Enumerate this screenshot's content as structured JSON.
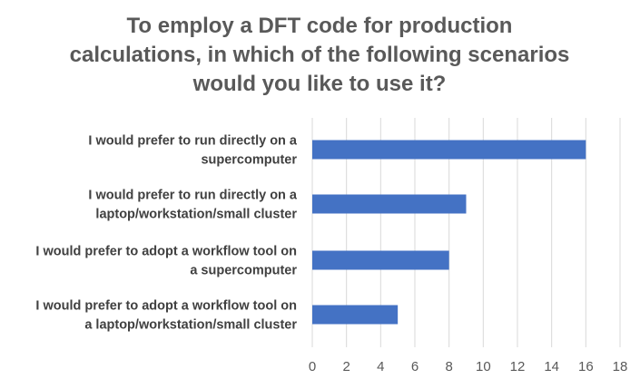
{
  "chart_data": {
    "type": "bar",
    "orientation": "horizontal",
    "title": "To employ a DFT code for production calculations, in which of the following scenarios would you like to use it?",
    "title_lines": [
      "To employ a DFT code for production",
      "calculations, in which of the following scenarios",
      "would you like to use it?"
    ],
    "categories": [
      "I would prefer to run directly on a supercomputer",
      "I would prefer to run directly on a laptop/workstation/small cluster",
      "I would prefer to adopt a workflow tool on a supercomputer",
      "I would prefer to adopt a workflow tool on a laptop/workstation/small cluster"
    ],
    "category_label_lines": [
      [
        "I would prefer to run directly on a",
        "supercomputer"
      ],
      [
        "I would prefer to run directly on a",
        "laptop/workstation/small cluster"
      ],
      [
        "I would prefer to adopt a workflow tool on",
        "a supercomputer"
      ],
      [
        "I would prefer to adopt a workflow tool on",
        "a laptop/workstation/small cluster"
      ]
    ],
    "values": [
      16,
      9,
      8,
      5
    ],
    "xlim": [
      0,
      18
    ],
    "xticks": [
      0,
      2,
      4,
      6,
      8,
      10,
      12,
      14,
      16,
      18
    ],
    "xlabel": "",
    "ylabel": "",
    "grid": "vertical",
    "legend": "none",
    "bar_color": "#4472c4"
  }
}
